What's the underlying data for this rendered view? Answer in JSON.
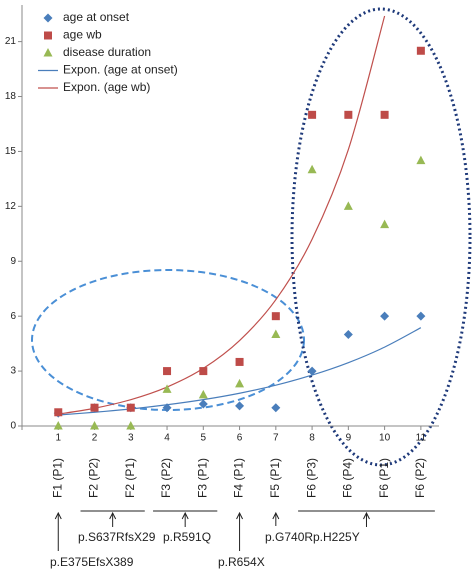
{
  "chart_data": {
    "type": "scatter",
    "x": [
      1,
      2,
      3,
      4,
      5,
      6,
      7,
      8,
      9,
      10,
      11
    ],
    "xlim": [
      0,
      11.5
    ],
    "xticks": [
      0,
      1,
      2,
      3,
      4,
      5,
      6,
      7,
      8,
      9,
      10,
      11
    ],
    "ylim": [
      0,
      23
    ],
    "yticks": [
      0,
      3,
      6,
      9,
      12,
      15,
      18,
      21
    ],
    "series": [
      {
        "name": "age at onset",
        "marker": "diamond",
        "color": "#4a7ebb",
        "values": [
          0.7,
          1,
          1,
          1,
          1.2,
          1.1,
          1,
          3,
          5,
          6,
          6
        ]
      },
      {
        "name": "age wb",
        "marker": "square",
        "color": "#be4b48",
        "values": [
          0.75,
          1,
          1,
          3,
          3,
          3.5,
          6,
          17,
          17,
          17,
          20.5
        ]
      },
      {
        "name": "disease duration",
        "marker": "triangle",
        "color": "#98b954",
        "values": [
          0,
          0,
          0,
          2,
          1.7,
          2.3,
          5,
          14,
          12,
          11,
          14.5
        ]
      },
      {
        "name": "Expon. (age at onset)",
        "marker": "line",
        "color": "#4a7ebb",
        "values": [
          0.6,
          0.75,
          0.93,
          1.16,
          1.44,
          1.79,
          2.23,
          2.78,
          3.46,
          4.31,
          5.37
        ]
      },
      {
        "name": "Expon. (age wb)",
        "marker": "line",
        "color": "#c0504d",
        "x": [
          1,
          2,
          3,
          4,
          5,
          6,
          7,
          8,
          9,
          10
        ],
        "values": [
          0.65,
          0.97,
          1.44,
          2.13,
          3.15,
          4.67,
          6.9,
          10.2,
          15.1,
          22.4
        ]
      }
    ],
    "samples": [
      "F1 (P1)",
      "F2 (P2)",
      "F2 (P1)",
      "F3 (P2)",
      "F3 (P1)",
      "F4 (P1)",
      "F5 (P1)",
      "F6 (P3)",
      "F6 (P4)",
      "F6 (P1)",
      "F6 (P2)"
    ],
    "variants": [
      "p.E375EfsX389",
      "p.S637RfsX29",
      "p.R591Q",
      "p.R654X",
      "p.G740R",
      "p.H225Y"
    ]
  }
}
